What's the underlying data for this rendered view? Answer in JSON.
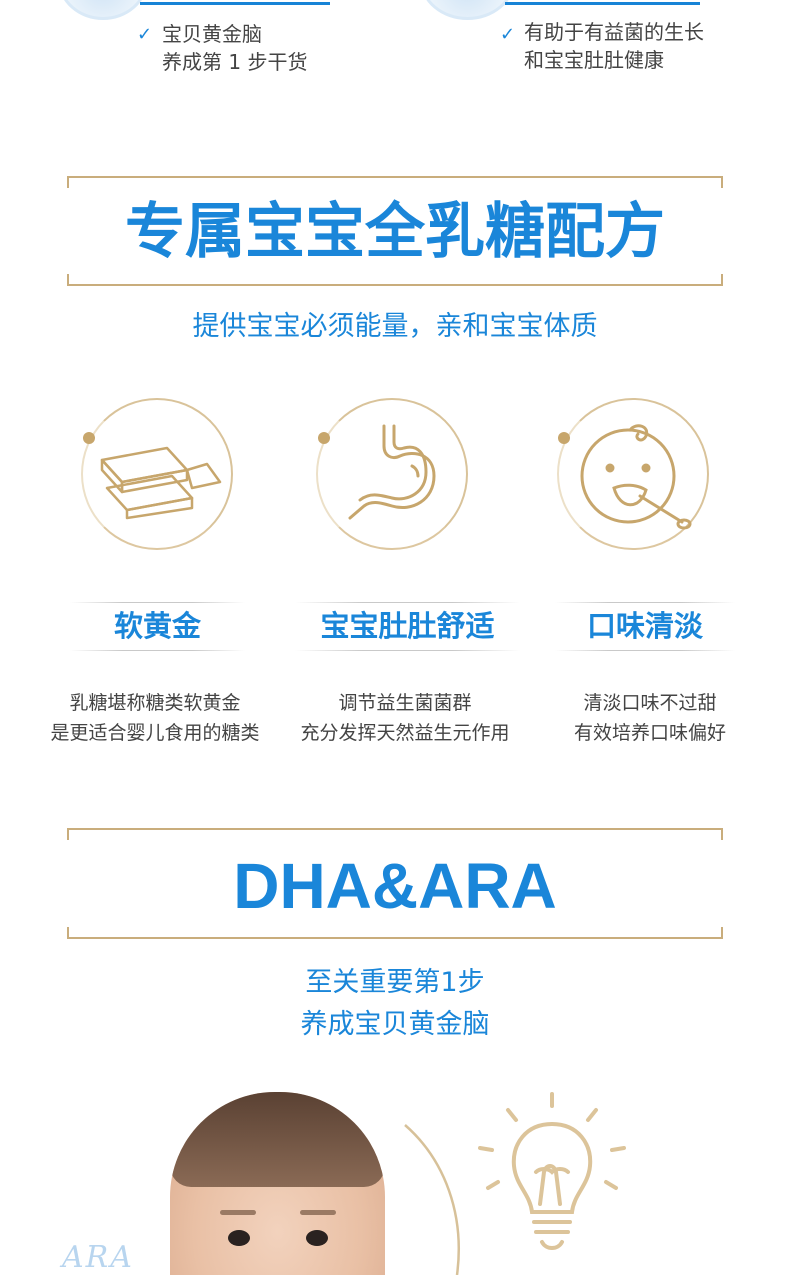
{
  "top_benefits": [
    {
      "line1": "宝贝黄金脑",
      "line2": "养成第 1 步干货"
    },
    {
      "line1": "有助于有益菌的生长",
      "line2": "和宝宝肚肚健康"
    }
  ],
  "lactose_section": {
    "title": "专属宝宝全乳糖配方",
    "subtitle": "提供宝宝必须能量，亲和宝宝体质",
    "features": [
      {
        "icon": "gold-bars-icon",
        "label": "软黄金",
        "desc1": "乳糖堪称糖类软黄金",
        "desc2": "是更适合婴儿食用的糖类"
      },
      {
        "icon": "stomach-icon",
        "label": "宝宝肚肚舒适",
        "desc1": "调节益生菌菌群",
        "desc2": "充分发挥天然益生元作用"
      },
      {
        "icon": "baby-spoon-icon",
        "label": "口味清淡",
        "desc1": "清淡口味不过甜",
        "desc2": "有效培养口味偏好"
      }
    ]
  },
  "dha_section": {
    "title": "DHA&ARA",
    "subtitle_line1": "至关重要第1步",
    "subtitle_line2": "养成宝贝黄金脑",
    "watermark": "ARA"
  },
  "colors": {
    "accent_blue": "#1a86d9",
    "gold": "#c9ad7c"
  }
}
